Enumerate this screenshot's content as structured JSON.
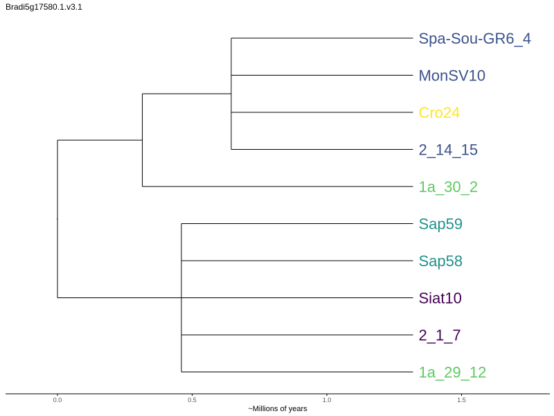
{
  "title": "Bradi5g17580.1.v3.1",
  "colors": {
    "branch": "#000000",
    "clade_blue": "#3b528b",
    "clade_yellow": "#fde725",
    "clade_green": "#5ec962",
    "clade_teal": "#21918c",
    "clade_purple": "#440154"
  },
  "chart_data": {
    "type": "dendrogram",
    "xlabel": "~Millions of years",
    "xlim": [
      -0.19,
      1.83
    ],
    "x_ticks": [
      {
        "value": 0.0,
        "label": "0.0"
      },
      {
        "value": 0.5,
        "label": "0.5"
      },
      {
        "value": 1.0,
        "label": "1.0"
      },
      {
        "value": 1.5,
        "label": "1.5"
      }
    ],
    "leaves": [
      {
        "name": "Spa-Sou-GR6_4",
        "color": "#3b528b"
      },
      {
        "name": "MonSV10",
        "color": "#3b528b"
      },
      {
        "name": "Cro24",
        "color": "#fde725"
      },
      {
        "name": "2_14_15",
        "color": "#3b528b"
      },
      {
        "name": "1a_30_2",
        "color": "#5ec962"
      },
      {
        "name": "Sap59",
        "color": "#21918c"
      },
      {
        "name": "Sap58",
        "color": "#21918c"
      },
      {
        "name": "Siat10",
        "color": "#440154"
      },
      {
        "name": "2_1_7",
        "color": "#440154"
      },
      {
        "name": "1a_29_12",
        "color": "#5ec962"
      }
    ],
    "leaf_x": 1.32,
    "internal_nodes": [
      {
        "id": "root",
        "x": 0.0,
        "children": [
          "upper",
          "lower"
        ]
      },
      {
        "id": "upper",
        "x": 0.315,
        "children": [
          "u1",
          "L4"
        ]
      },
      {
        "id": "u1",
        "x": 0.645,
        "children": [
          "L0",
          "L1",
          "L2",
          "L3"
        ]
      },
      {
        "id": "lower",
        "x": 0.46,
        "children": [
          "L5",
          "L6",
          "L7",
          "L8",
          "L9"
        ]
      }
    ]
  }
}
